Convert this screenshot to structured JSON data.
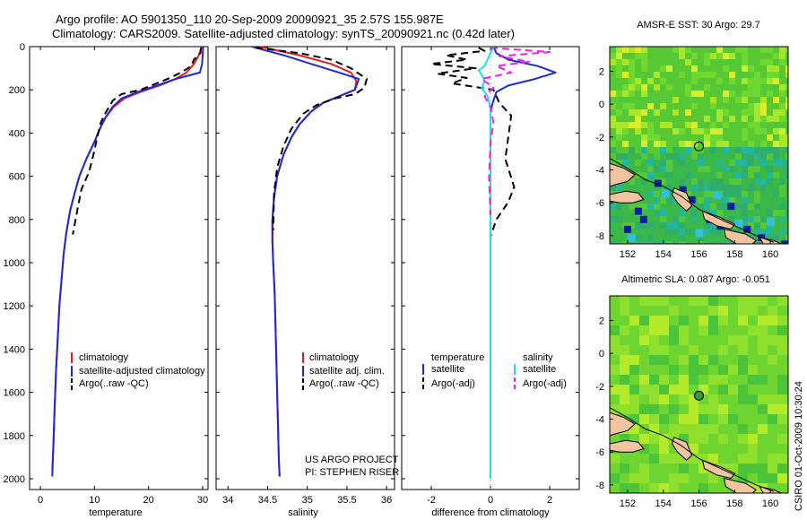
{
  "header": {
    "line1": "Argo profile: AO 5901350_110 20-Sep-2009 20090921_35 2.57S 155.987E",
    "line2": "Climatology: CARS2009. Satellite-adjusted climatology: synTS_20090921.nc (0.42d later)"
  },
  "credit": {
    "line1": "US ARGO PROJECT",
    "line2": "PI: STEPHEN RISER"
  },
  "stamp": "CSIRO 01-Oct-2009 10:30:24",
  "colors": {
    "climatology": "#e21f1f",
    "satellite": "#1a2bd6",
    "argo": "#000000",
    "sat_sal": "#22ddee",
    "argo_sal": "#ee22dd",
    "land": "#f3c4a0"
  },
  "chart_data": [
    {
      "type": "line",
      "xlabel": "temperature",
      "ylabel": "",
      "xlim": [
        -2,
        31
      ],
      "ylim": [
        2050,
        0
      ],
      "xticks": [
        0,
        10,
        20,
        30
      ],
      "yticks": [
        0,
        200,
        400,
        600,
        800,
        1000,
        1200,
        1400,
        1600,
        1800,
        2000
      ],
      "legend_position": "lower-middle",
      "series": [
        {
          "name": "climatology",
          "color": "#e21f1f",
          "dash": "solid",
          "x": [
            29.8,
            29.3,
            28.4,
            27.0,
            25.0,
            22.0,
            18.5,
            15.5,
            13.5,
            12.0,
            11.0,
            10.0,
            8.5,
            7.2,
            6.3,
            5.5,
            4.8,
            4.3,
            3.9,
            3.5,
            3.2,
            2.9,
            2.6,
            2.4,
            2.2
          ],
          "y": [
            0,
            40,
            80,
            120,
            150,
            180,
            210,
            240,
            280,
            330,
            380,
            440,
            520,
            600,
            680,
            760,
            860,
            960,
            1080,
            1200,
            1350,
            1500,
            1700,
            1850,
            1960
          ]
        },
        {
          "name": "satellite-adjusted climatology",
          "color": "#1a2bd6",
          "dash": "solid",
          "x": [
            30.1,
            30.0,
            29.9,
            29.5,
            25.0,
            21.5,
            18.0,
            15.0,
            13.3,
            12.0,
            11.0,
            10.0,
            8.5,
            7.2,
            6.3,
            5.5,
            4.8,
            4.3,
            3.9,
            3.5,
            3.2,
            2.9,
            2.6,
            2.4,
            2.2
          ],
          "y": [
            0,
            40,
            80,
            120,
            150,
            180,
            210,
            240,
            280,
            330,
            380,
            440,
            520,
            600,
            680,
            760,
            860,
            960,
            1080,
            1200,
            1350,
            1500,
            1700,
            1850,
            1990
          ]
        },
        {
          "name": "Argo(..raw -QC)",
          "color": "#000000",
          "dash": "dashed",
          "x": [
            29.7,
            29.6,
            28.4,
            27.9,
            26.0,
            23.5,
            21.0,
            18.5,
            15.0,
            13.4,
            12.2,
            11.2,
            10.5,
            9.8,
            9.0,
            7.6,
            6.8,
            6.0
          ],
          "y": [
            5,
            30,
            60,
            90,
            120,
            150,
            175,
            200,
            220,
            250,
            300,
            350,
            420,
            500,
            580,
            660,
            760,
            870
          ]
        }
      ]
    },
    {
      "type": "line",
      "xlabel": "salinity",
      "ylabel": "",
      "xlim": [
        33.85,
        36.1
      ],
      "ylim": [
        2050,
        0
      ],
      "xticks": [
        34,
        34.5,
        35,
        35.5,
        36
      ],
      "legend_position": "lower-middle",
      "series": [
        {
          "name": "climatology",
          "color": "#e21f1f",
          "dash": "solid",
          "x": [
            34.4,
            34.9,
            35.3,
            35.55,
            35.62,
            35.6,
            35.4,
            35.2,
            35.05,
            34.9,
            34.8,
            34.7,
            34.62,
            34.58,
            34.56,
            34.56,
            34.57,
            34.59,
            34.6,
            34.61,
            34.62,
            34.63,
            34.64,
            34.65
          ],
          "y": [
            0,
            40,
            80,
            120,
            160,
            200,
            230,
            260,
            300,
            360,
            420,
            500,
            600,
            700,
            800,
            900,
            1000,
            1150,
            1300,
            1450,
            1600,
            1750,
            1900,
            1990
          ]
        },
        {
          "name": "satellite adj. clim.",
          "color": "#1a2bd6",
          "dash": "solid",
          "x": [
            34.3,
            34.7,
            35.05,
            35.4,
            35.65,
            35.6,
            35.4,
            35.2,
            35.05,
            34.9,
            34.8,
            34.7,
            34.62,
            34.58,
            34.56,
            34.56,
            34.57,
            34.59,
            34.6,
            34.61,
            34.62,
            34.63,
            34.64,
            34.65
          ],
          "y": [
            0,
            40,
            80,
            120,
            150,
            200,
            230,
            260,
            300,
            360,
            420,
            500,
            600,
            700,
            800,
            900,
            1000,
            1150,
            1300,
            1450,
            1600,
            1750,
            1900,
            1990
          ]
        },
        {
          "name": "Argo(..raw -QC)",
          "color": "#000000",
          "dash": "dashed",
          "x": [
            34.35,
            34.9,
            35.3,
            35.55,
            35.75,
            35.72,
            35.6,
            35.35,
            35.12,
            34.95,
            34.8,
            34.7,
            34.62,
            34.58,
            34.57
          ],
          "y": [
            5,
            30,
            60,
            100,
            150,
            190,
            220,
            240,
            270,
            310,
            380,
            460,
            560,
            680,
            850
          ]
        }
      ]
    },
    {
      "type": "line",
      "xlabel": "difference from climatology",
      "ylabel": "",
      "xlim": [
        -3,
        3
      ],
      "ylim": [
        2050,
        0
      ],
      "xticks": [
        -2,
        0,
        2
      ],
      "legend_position": "lower-middle",
      "legend_headers": [
        "temperature",
        "salinity"
      ],
      "series": [
        {
          "name": "satellite",
          "color": "#1a2bd6",
          "dash": "solid",
          "group": "temperature",
          "x": [
            0.1,
            0.2,
            0.6,
            1.6,
            2.2,
            1.5,
            0.6,
            0.2,
            0.1,
            0.0,
            0.0,
            0.0,
            0.0,
            0.0,
            0.0,
            0.0
          ],
          "y": [
            0,
            30,
            60,
            90,
            120,
            150,
            180,
            210,
            250,
            300,
            400,
            600,
            800,
            1000,
            1500,
            2000
          ]
        },
        {
          "name": "Argo(-adj)",
          "color": "#000000",
          "dash": "dashed",
          "group": "temperature",
          "x": [
            -0.4,
            -0.2,
            -1.5,
            -0.8,
            -2.0,
            -0.5,
            -1.8,
            -0.8,
            -1.3,
            0.1,
            0.3,
            0.7,
            0.6,
            0.5,
            0.8,
            0.6,
            0.2,
            0.0
          ],
          "y": [
            5,
            20,
            40,
            60,
            80,
            100,
            125,
            145,
            170,
            200,
            260,
            320,
            420,
            520,
            650,
            720,
            800,
            880
          ]
        },
        {
          "name": "satellite",
          "color": "#22ddee",
          "dash": "solid",
          "group": "salinity",
          "x": [
            0.1,
            0.0,
            -0.1,
            -0.2,
            -0.4,
            -0.3,
            -0.2,
            -0.3,
            -0.1,
            0.0,
            0.0,
            0.0,
            0.0,
            0.0,
            0.0
          ],
          "y": [
            0,
            30,
            60,
            90,
            110,
            130,
            160,
            190,
            230,
            280,
            400,
            700,
            1000,
            1500,
            2000
          ]
        },
        {
          "name": "Argo(-adj)",
          "color": "#ee22dd",
          "dash": "dashed",
          "group": "salinity",
          "x": [
            0.0,
            2.0,
            0.3,
            1.3,
            0.2,
            0.7,
            -0.3,
            0.1,
            -0.2,
            0.0,
            0.1,
            0.0,
            -0.05,
            0.0
          ],
          "y": [
            5,
            25,
            45,
            70,
            90,
            120,
            150,
            190,
            230,
            280,
            350,
            450,
            600,
            780
          ]
        }
      ]
    },
    {
      "type": "heatmap",
      "title": "AMSR-E SST: 30 Argo: 29.7",
      "xlim": [
        151,
        161
      ],
      "ylim": [
        -8.5,
        3.5
      ],
      "xticks": [
        152,
        154,
        156,
        158,
        160
      ],
      "yticks": [
        2,
        0,
        -2,
        -4,
        -6,
        -8
      ],
      "marker": {
        "x": 156.0,
        "y": -2.57
      }
    },
    {
      "type": "heatmap",
      "title": "Altimetric SLA: 0.087 Argo: -0.051",
      "xlim": [
        151,
        161
      ],
      "ylim": [
        -8.5,
        3.5
      ],
      "xticks": [
        152,
        154,
        156,
        158,
        160
      ],
      "yticks": [
        2,
        0,
        -2,
        -4,
        -6,
        -8
      ],
      "marker": {
        "x": 156.0,
        "y": -2.57
      }
    }
  ]
}
